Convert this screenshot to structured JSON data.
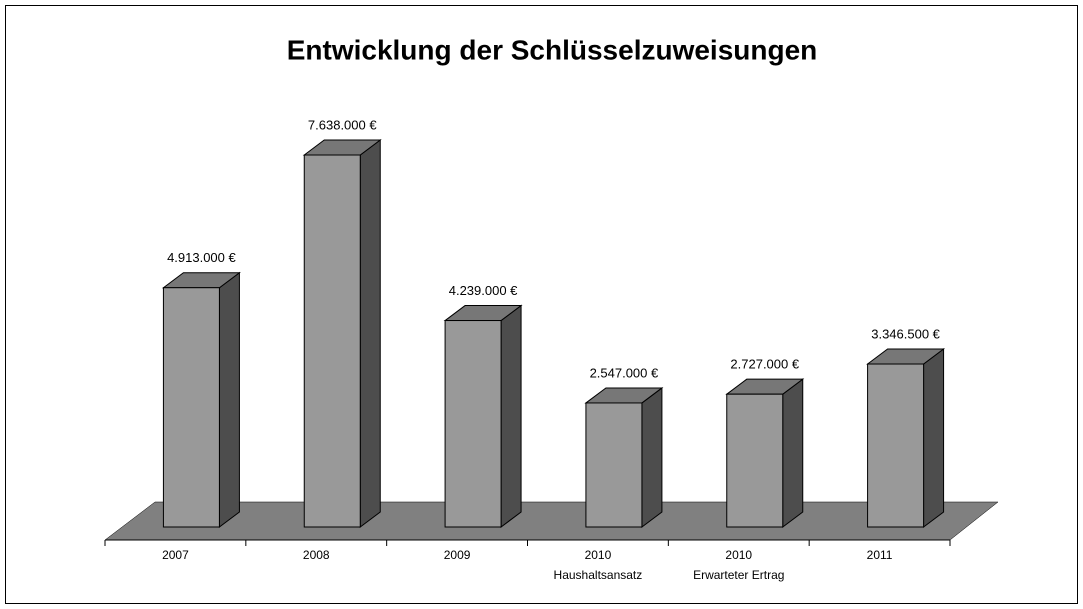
{
  "chart_data": {
    "type": "bar3d",
    "title": "Entwicklung der Schlüsselzuweisungen",
    "categories": [
      [
        "2007"
      ],
      [
        "2008"
      ],
      [
        "2009"
      ],
      [
        "2010",
        "Haushaltsansatz"
      ],
      [
        "2010",
        "Erwarteter Ertrag"
      ],
      [
        "2011"
      ]
    ],
    "values": [
      4913000,
      7638000,
      4239000,
      2547000,
      2727000,
      3346500
    ],
    "value_labels": [
      "4.913.000 €",
      "7.638.000 €",
      "4.239.000 €",
      "2.547.000 €",
      "2.727.000 €",
      "3.346.500 €"
    ],
    "color": "#999999"
  }
}
